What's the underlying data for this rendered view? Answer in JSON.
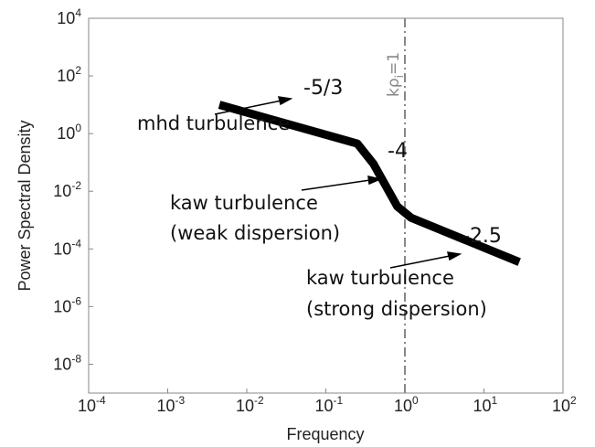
{
  "chart_data": {
    "type": "line",
    "xlabel": "Frequency",
    "ylabel": "Power Spectral Density",
    "xscale": "log",
    "yscale": "log",
    "xlim": [
      0.0001,
      100
    ],
    "ylim": [
      1e-09,
      10000
    ],
    "x_ticks": [
      {
        "base": "10",
        "exp": "-4"
      },
      {
        "base": "10",
        "exp": "-3"
      },
      {
        "base": "10",
        "exp": "-2"
      },
      {
        "base": "10",
        "exp": "-1"
      },
      {
        "base": "10",
        "exp": "0"
      },
      {
        "base": "10",
        "exp": "1"
      },
      {
        "base": "10",
        "exp": "2"
      }
    ],
    "y_ticks": [
      {
        "base": "10",
        "exp": "-8"
      },
      {
        "base": "10",
        "exp": "-6"
      },
      {
        "base": "10",
        "exp": "-4"
      },
      {
        "base": "10",
        "exp": "-2"
      },
      {
        "base": "10",
        "exp": "0"
      },
      {
        "base": "10",
        "exp": "2"
      },
      {
        "base": "10",
        "exp": "4"
      }
    ],
    "grid": false,
    "series": [
      {
        "color": "#000000",
        "x": [
          0.0045,
          0.25,
          0.4,
          0.8,
          1.2,
          28
        ],
        "y": [
          10,
          0.45,
          0.09,
          0.003,
          0.0012,
          3.5e-05
        ]
      }
    ],
    "vline": {
      "x": 1,
      "label_main": "kρ",
      "label_sub": "i",
      "label_tail": "=1",
      "color": "#888888"
    },
    "annotations": [
      {
        "text": "-5/3",
        "role": "slope"
      },
      {
        "text": "-4",
        "role": "slope"
      },
      {
        "text": "-2.5",
        "role": "slope"
      },
      {
        "lines": [
          "mhd turbulence"
        ]
      },
      {
        "lines": [
          "kaw turbulence",
          "(weak dispersion)"
        ]
      },
      {
        "lines": [
          "kaw turbulence",
          "(strong dispersion)"
        ]
      }
    ]
  }
}
